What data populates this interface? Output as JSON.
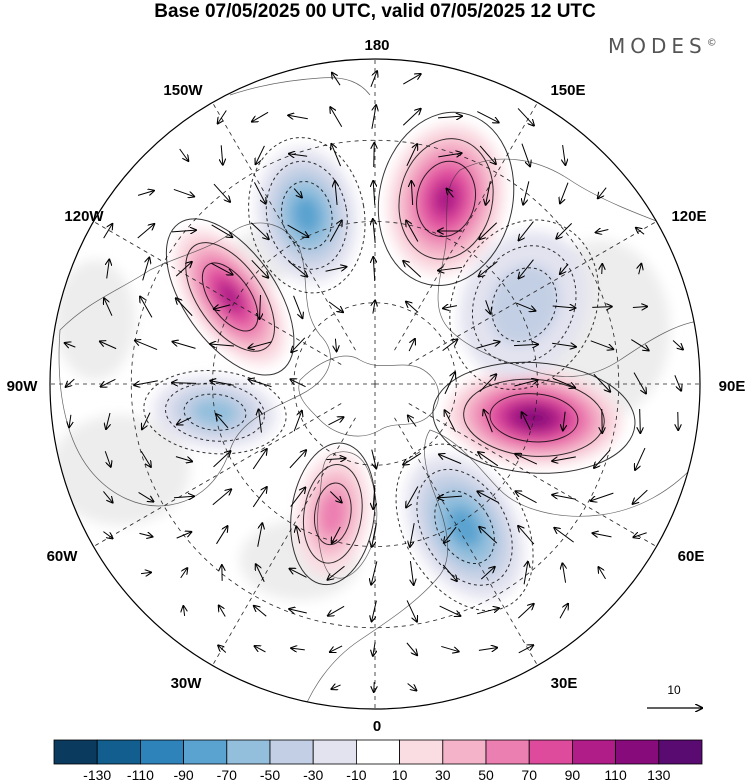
{
  "title": "Base 07/05/2025 00 UTC, valid 07/05/2025 12 UTC",
  "brand": "MODES",
  "brand_mark": "©",
  "map": {
    "projection": "north-polar-stereographic",
    "longitude_labels": {
      "top": "180",
      "bottom": "0",
      "left": "90W",
      "right": "90E",
      "top_left_1": "150W",
      "top_left_2": "120W",
      "bottom_left_1": "60W",
      "bottom_left_2": "30W",
      "top_right_1": "150E",
      "top_right_2": "120E",
      "bottom_right_1": "60E",
      "bottom_right_2": "30E"
    },
    "reference_vector_label": "10",
    "colors": {
      "background": "#ffffff",
      "neutral_fill": "#e8e8e8",
      "graticule": "#222222",
      "coastline": "#333333"
    },
    "anomaly_centers": [
      {
        "sign": "negative",
        "value": -90,
        "region": "north pacific 160W"
      },
      {
        "sign": "positive",
        "value": 110,
        "region": "northeast pacific 120W"
      },
      {
        "sign": "negative",
        "value": -70,
        "region": "hudson bay 90W"
      },
      {
        "sign": "positive",
        "value": 70,
        "region": "greenland 20W"
      },
      {
        "sign": "negative",
        "value": -90,
        "region": "scandinavia russia 30E"
      },
      {
        "sign": "positive",
        "value": 130,
        "region": "siberia 80E"
      },
      {
        "sign": "negative",
        "value": -50,
        "region": "east siberia 120E"
      },
      {
        "sign": "positive",
        "value": 110,
        "region": "bering sea 160E"
      }
    ]
  },
  "colorbar": {
    "ticks": [
      "-130",
      "-110",
      "-90",
      "-70",
      "-50",
      "-30",
      "-10",
      "10",
      "30",
      "50",
      "70",
      "90",
      "110",
      "130"
    ],
    "colors": [
      "#0a3a5e",
      "#125f8f",
      "#2e83bb",
      "#5aa3d0",
      "#93bfdd",
      "#c3cfe4",
      "#e3e3f0",
      "#ffffff",
      "#fadde3",
      "#f4b3c8",
      "#ec7fb1",
      "#de4a9c",
      "#b01c88",
      "#870b7a",
      "#5a0b72"
    ]
  }
}
